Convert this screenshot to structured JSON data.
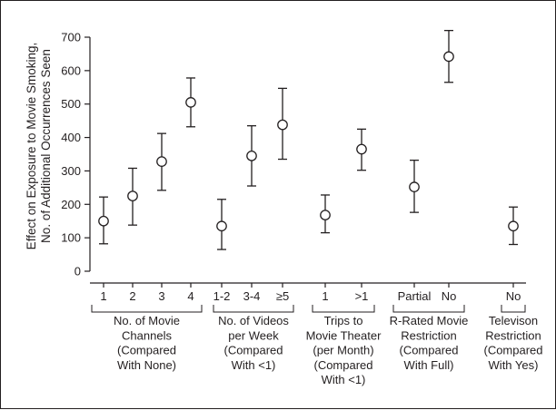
{
  "chart_data": {
    "type": "scatter",
    "title": "",
    "ylabel": [
      "Effect on Exposure to Movie Smoking,",
      "No. of Additional Occurrences Seen"
    ],
    "ylim": [
      0,
      700
    ],
    "yticks": [
      0,
      100,
      200,
      300,
      400,
      500,
      600,
      700
    ],
    "grid": false,
    "legend": "none",
    "points": [
      {
        "group": "channels",
        "x": "1",
        "y": 150,
        "low": 82,
        "high": 222
      },
      {
        "group": "channels",
        "x": "2",
        "y": 225,
        "low": 138,
        "high": 308
      },
      {
        "group": "channels",
        "x": "3",
        "y": 328,
        "low": 242,
        "high": 412
      },
      {
        "group": "channels",
        "x": "4",
        "y": 505,
        "low": 432,
        "high": 578
      },
      {
        "group": "videos",
        "x": "1-2",
        "y": 135,
        "low": 65,
        "high": 215
      },
      {
        "group": "videos",
        "x": "3-4",
        "y": 345,
        "low": 255,
        "high": 435
      },
      {
        "group": "videos",
        "x": "≥5",
        "y": 438,
        "low": 335,
        "high": 547
      },
      {
        "group": "theater",
        "x": "1",
        "y": 168,
        "low": 115,
        "high": 228
      },
      {
        "group": "theater",
        "x": ">1",
        "y": 365,
        "low": 302,
        "high": 425
      },
      {
        "group": "rrated",
        "x": "Partial",
        "y": 252,
        "low": 176,
        "high": 332
      },
      {
        "group": "rrated",
        "x": "No",
        "y": 642,
        "low": 565,
        "high": 720
      },
      {
        "group": "tv",
        "x": "No",
        "y": 135,
        "low": 80,
        "high": 192
      }
    ],
    "groups": [
      {
        "id": "channels",
        "label": [
          "No. of Movie",
          "Channels",
          "(Compared",
          "With None)"
        ]
      },
      {
        "id": "videos",
        "label": [
          "No. of Videos",
          "per Week",
          "(Compared",
          "With <1)"
        ]
      },
      {
        "id": "theater",
        "label": [
          "Trips to",
          "Movie Theater",
          "(per Month)",
          "(Compared",
          "With <1)"
        ]
      },
      {
        "id": "rrated",
        "label": [
          "R-Rated Movie",
          "Restriction",
          "(Compared",
          "With Full)"
        ]
      },
      {
        "id": "tv",
        "label": [
          "Televison",
          "Restriction",
          "(Compared",
          "With Yes)"
        ]
      }
    ]
  }
}
